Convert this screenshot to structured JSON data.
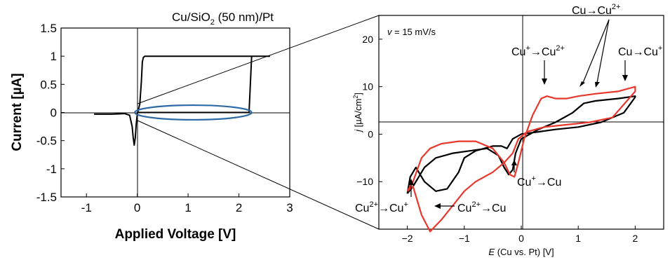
{
  "chart_data": [
    {
      "type": "line",
      "title": "Cu/SiO",
      "title_sub": "2",
      "title_rest": " (50 nm)/Pt",
      "xlabel": "Applied Voltage [V]",
      "ylabel": "Current [µA]",
      "xlim": [
        -1.5,
        3
      ],
      "ylim": [
        -1.5,
        1.5
      ],
      "xticks": [
        -1,
        0,
        1,
        2,
        3
      ],
      "xtick_labels": [
        "-1",
        "0",
        "1",
        "2",
        "3"
      ],
      "yticks": [
        -1.5,
        -1,
        -0.5,
        0,
        0.5,
        1,
        1.5
      ],
      "ytick_labels": [
        "-1.5",
        "-1",
        "-0.5",
        "0",
        "0.5",
        "1",
        "1.5"
      ],
      "series": [
        {
          "color": "#000000",
          "x": [
            -0.85,
            -0.5,
            -0.25,
            -0.15,
            -0.1,
            -0.08,
            -0.06,
            -0.04,
            -0.02,
            0.0,
            0.05,
            0.08,
            0.1,
            0.12,
            0.15,
            0.5,
            1.0,
            2.0,
            2.6,
            2.6,
            2.25,
            2.23,
            2.2,
            1.5,
            0.5,
            0.0
          ],
          "y": [
            -0.03,
            -0.03,
            -0.02,
            -0.05,
            -0.25,
            -0.45,
            -0.58,
            -0.45,
            -0.2,
            -0.03,
            0.15,
            0.55,
            0.9,
            0.98,
            1.0,
            1.0,
            1.0,
            1.0,
            1.0,
            1.0,
            1.0,
            0.6,
            0.0,
            0.0,
            0.0,
            0.0
          ]
        }
      ],
      "highlight_ellipse": {
        "x_center": 1.1,
        "y_center": 0.0,
        "x_halfwidth": 1.15,
        "y_halfheight": 0.13,
        "color": "#2e6aa6"
      }
    },
    {
      "type": "line",
      "xlabel_italic": "E",
      "xlabel_rest": " (Cu vs. Pt) [V]",
      "ylabel_italic": "j",
      "ylabel_rest": " [µA/cm",
      "ylabel_sup": "2",
      "ylabel_end": "]",
      "xlim": [
        -2.5,
        2.5
      ],
      "ylim": [
        -20,
        25
      ],
      "xticks": [
        -2,
        -1,
        0,
        1,
        2
      ],
      "xtick_labels": [
        "−2",
        "−1",
        "0",
        "1",
        "2"
      ],
      "yticks": [
        -10,
        0,
        10,
        20
      ],
      "ytick_labels": [
        "−10",
        "0",
        "10",
        "20"
      ],
      "scan_rate_italic": "v",
      "scan_rate_rest": " = 15 mV/s",
      "series": [
        {
          "color": "#000000",
          "x": [
            -2.0,
            -1.9,
            -1.7,
            -1.5,
            -1.2,
            -0.9,
            -0.6,
            -0.4,
            -0.3,
            -0.22,
            -0.15,
            -0.1,
            0.0,
            0.3,
            0.6,
            0.9,
            1.1,
            1.3,
            1.7,
            2.0,
            2.0,
            1.8,
            1.4,
            1.0,
            0.6,
            0.3,
            0.0,
            -0.15,
            -0.25,
            -0.35,
            -0.5,
            -0.8,
            -1.0,
            -1.1,
            -1.3,
            -1.5,
            -1.7,
            -1.85,
            -1.95,
            -2.0
          ],
          "y": [
            -12.5,
            -11.0,
            -7.0,
            -5.0,
            -4.0,
            -3.5,
            -3.0,
            -4.5,
            -7.0,
            -8.5,
            -7.5,
            -4.0,
            -1.0,
            1.0,
            2.5,
            4.5,
            6.5,
            7.0,
            7.5,
            8.0,
            7.8,
            4.5,
            2.5,
            1.5,
            1.0,
            0.5,
            0.0,
            -1.0,
            -3.0,
            -2.5,
            -2.5,
            -3.5,
            -5.0,
            -8.0,
            -11.5,
            -12.0,
            -10.0,
            -7.0,
            -9.0,
            -12.5
          ]
        },
        {
          "color": "#e8372c",
          "x": [
            -2.0,
            -1.9,
            -1.75,
            -1.6,
            -1.4,
            -1.1,
            -0.8,
            -0.5,
            -0.3,
            -0.2,
            -0.12,
            -0.05,
            0.05,
            0.2,
            0.35,
            0.45,
            0.6,
            0.8,
            1.0,
            1.3,
            1.7,
            2.0,
            2.0,
            1.6,
            1.2,
            0.8,
            0.4,
            0.1,
            -0.05,
            -0.15,
            -0.3,
            -0.5,
            -0.8,
            -1.0,
            -1.2,
            -1.4,
            -1.6,
            -1.75,
            -1.9,
            -2.0
          ],
          "y": [
            -12.0,
            -10.0,
            -5.0,
            -3.0,
            -2.0,
            -1.5,
            -1.5,
            -3.0,
            -6.0,
            -8.5,
            -9.0,
            -6.0,
            -1.0,
            4.0,
            7.5,
            8.0,
            7.5,
            7.5,
            8.0,
            8.5,
            9.0,
            10.0,
            9.0,
            3.5,
            2.5,
            2.0,
            1.5,
            0.5,
            -1.0,
            -4.0,
            -6.0,
            -8.0,
            -10.0,
            -12.0,
            -15.0,
            -18.0,
            -20.5,
            -17.0,
            -11.0,
            -12.0
          ]
        }
      ],
      "annotations": [
        {
          "text": "Cu→Cu",
          "sup": "2+"
        },
        {
          "text": "Cu",
          "sup": "+",
          "text2": "→Cu",
          "sup2": "2+"
        },
        {
          "text": "Cu→Cu",
          "sup": "+"
        },
        {
          "text": "Cu",
          "sup": "+",
          "text2": "→Cu",
          "sup2": ""
        },
        {
          "text": "Cu",
          "sup": "2+",
          "text2": "→Cu",
          "sup2": "+"
        },
        {
          "text": "Cu",
          "sup": "2+",
          "text2": "→Cu",
          "sup2": ""
        }
      ]
    }
  ],
  "colors": {
    "black_trace": "#000000",
    "red_trace": "#e8372c",
    "ellipse": "#2e6aa6",
    "connector": "#000000"
  }
}
